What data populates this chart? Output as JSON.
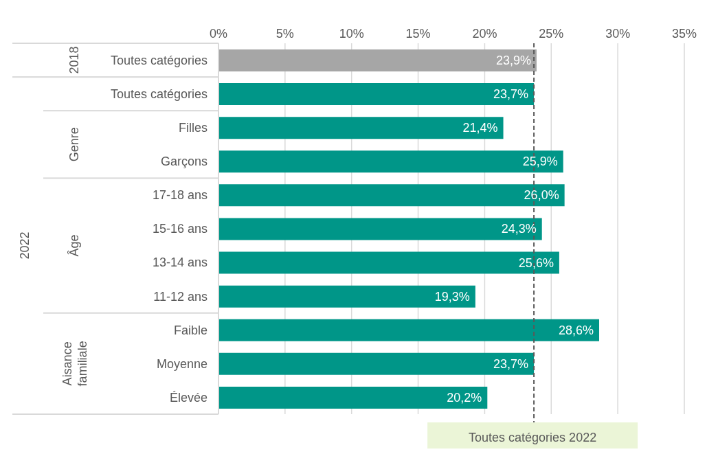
{
  "chart_data": {
    "type": "bar",
    "orientation": "horizontal",
    "categories": [
      "Toutes catégories",
      "Toutes catégories",
      "Filles",
      "Garçons",
      "17-18 ans",
      "15-16 ans",
      "13-14 ans",
      "11-12 ans",
      "Faible",
      "Moyenne",
      "Élevée"
    ],
    "values": [
      23.9,
      23.7,
      21.4,
      25.9,
      26.0,
      24.3,
      25.6,
      19.3,
      28.6,
      23.7,
      20.2
    ],
    "colors": [
      "#a6a6a6",
      "#009688",
      "#009688",
      "#009688",
      "#009688",
      "#009688",
      "#009688",
      "#009688",
      "#009688",
      "#009688",
      "#009688"
    ],
    "value_labels": [
      "23,9%",
      "23,7%",
      "21,4%",
      "25,9%",
      "26,0%",
      "24,3%",
      "25,6%",
      "19,3%",
      "28,6%",
      "23,7%",
      "20,2%"
    ],
    "xlim": [
      0,
      35
    ],
    "xticks": [
      {
        "value": 0,
        "label": "0%"
      },
      {
        "value": 5,
        "label": "5%"
      },
      {
        "value": 10,
        "label": "10%"
      },
      {
        "value": 15,
        "label": "15%"
      },
      {
        "value": 20,
        "label": "20%"
      },
      {
        "value": 25,
        "label": "25%"
      },
      {
        "value": 30,
        "label": "30%"
      },
      {
        "value": 35,
        "label": "35%"
      }
    ],
    "grid": "x",
    "ref_lines": [
      {
        "axis": "x",
        "value": 23.7,
        "label": "Toutes catégories 2022",
        "color": "#595959",
        "line_style": "dashed"
      }
    ],
    "annotations": [
      "2018",
      "2022",
      "Genre",
      "Âge",
      "Aisance familiale"
    ]
  }
}
